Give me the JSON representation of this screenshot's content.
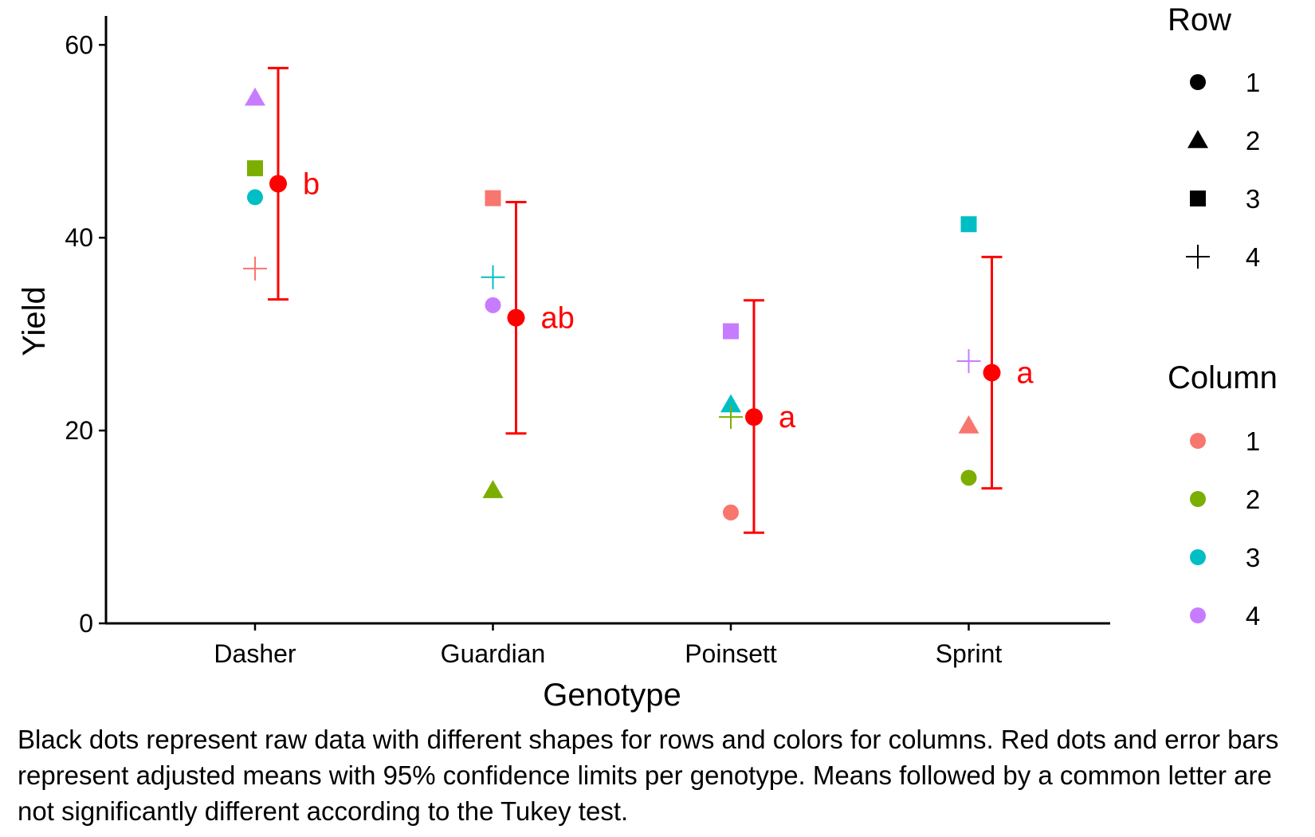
{
  "chart_data": {
    "type": "scatter",
    "xlabel": "Genotype",
    "ylabel": "Yield",
    "ylim": [
      0,
      63
    ],
    "yticks": [
      0,
      20,
      40,
      60
    ],
    "categories": [
      "Dasher",
      "Guardian",
      "Poinsett",
      "Sprint"
    ],
    "raw_points": [
      {
        "genotype": "Dasher",
        "row": 2,
        "column": 4,
        "yield": 54.5
      },
      {
        "genotype": "Dasher",
        "row": 3,
        "column": 2,
        "yield": 47.2
      },
      {
        "genotype": "Dasher",
        "row": 1,
        "column": 3,
        "yield": 44.2
      },
      {
        "genotype": "Dasher",
        "row": 4,
        "column": 1,
        "yield": 36.8
      },
      {
        "genotype": "Guardian",
        "row": 3,
        "column": 1,
        "yield": 44.1
      },
      {
        "genotype": "Guardian",
        "row": 4,
        "column": 3,
        "yield": 35.9
      },
      {
        "genotype": "Guardian",
        "row": 1,
        "column": 4,
        "yield": 33.0
      },
      {
        "genotype": "Guardian",
        "row": 2,
        "column": 2,
        "yield": 13.8
      },
      {
        "genotype": "Poinsett",
        "row": 3,
        "column": 4,
        "yield": 30.3
      },
      {
        "genotype": "Poinsett",
        "row": 2,
        "column": 3,
        "yield": 22.7
      },
      {
        "genotype": "Poinsett",
        "row": 4,
        "column": 2,
        "yield": 21.4
      },
      {
        "genotype": "Poinsett",
        "row": 1,
        "column": 1,
        "yield": 11.5
      },
      {
        "genotype": "Sprint",
        "row": 3,
        "column": 3,
        "yield": 41.4
      },
      {
        "genotype": "Sprint",
        "row": 4,
        "column": 4,
        "yield": 27.2
      },
      {
        "genotype": "Sprint",
        "row": 2,
        "column": 1,
        "yield": 20.5
      },
      {
        "genotype": "Sprint",
        "row": 1,
        "column": 2,
        "yield": 15.1
      }
    ],
    "adjusted_means": [
      {
        "genotype": "Dasher",
        "mean": 45.6,
        "lower": 33.6,
        "upper": 57.6,
        "letter": "b"
      },
      {
        "genotype": "Guardian",
        "mean": 31.7,
        "lower": 19.7,
        "upper": 43.7,
        "letter": "ab"
      },
      {
        "genotype": "Poinsett",
        "mean": 21.4,
        "lower": 9.4,
        "upper": 33.5,
        "letter": "a"
      },
      {
        "genotype": "Sprint",
        "mean": 26.0,
        "lower": 14.0,
        "upper": 38.0,
        "letter": "a"
      }
    ],
    "mean_color": "#FF0000",
    "legend_row": {
      "title": "Row",
      "items": [
        {
          "label": "1",
          "shape": "circle"
        },
        {
          "label": "2",
          "shape": "triangle"
        },
        {
          "label": "3",
          "shape": "square"
        },
        {
          "label": "4",
          "shape": "plus"
        }
      ]
    },
    "legend_column": {
      "title": "Column",
      "items": [
        {
          "label": "1",
          "color": "#F8766D"
        },
        {
          "label": "2",
          "color": "#7CAE00"
        },
        {
          "label": "3",
          "color": "#00BFC4"
        },
        {
          "label": "4",
          "color": "#C77CFF"
        }
      ]
    }
  },
  "caption": "Black dots represent raw data with different shapes for rows and colors for columns. Red dots and error bars represent adjusted means with 95% confidence limits per genotype. Means followed by a common letter are not significantly different according to the Tukey test."
}
